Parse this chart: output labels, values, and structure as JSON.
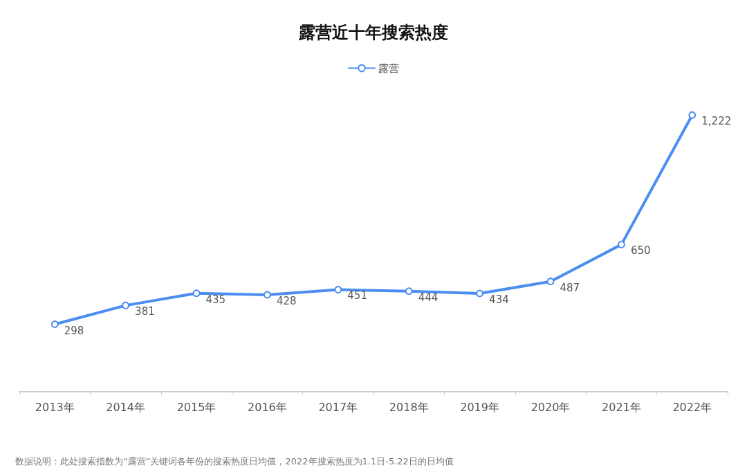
{
  "chart_data": {
    "type": "line",
    "title": "露营近十年搜索热度",
    "categories": [
      "2013年",
      "2014年",
      "2015年",
      "2016年",
      "2017年",
      "2018年",
      "2019年",
      "2020年",
      "2021年",
      "2022年"
    ],
    "series": [
      {
        "name": "露营",
        "color": "#4b8df0",
        "values": [
          298,
          381,
          435,
          428,
          451,
          444,
          434,
          487,
          650,
          1222
        ],
        "value_labels": [
          "298",
          "381",
          "435",
          "428",
          "451",
          "444",
          "434",
          "487",
          "650",
          "1,222"
        ]
      }
    ],
    "legend": "top",
    "grid": false,
    "marker": "circle",
    "line_style": "solid",
    "annotations": [
      "数据说明：此处搜索指数为“露营”关键词各年份的搜索热度日均值，2022年搜索热度为1.1日-5.22日的日均值"
    ]
  }
}
